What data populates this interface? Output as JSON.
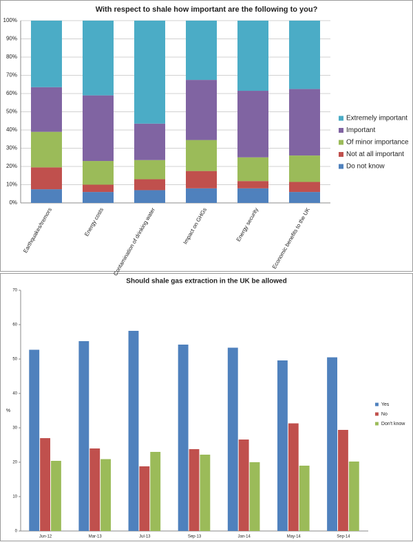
{
  "chart_data": [
    {
      "type": "bar",
      "stacked": true,
      "title": "With respect to shale how important are the following to you?",
      "categories": [
        "Earthquakes/tremors",
        "Energy costs",
        "Contamination of drinking water",
        "Impact on GHGs",
        "Energy security",
        "Economic benefits to the UK"
      ],
      "series": [
        {
          "name": "Do not know",
          "color": "#4f81bd",
          "values": [
            7.5,
            6,
            7,
            8,
            8,
            6
          ]
        },
        {
          "name": "Not at  all important",
          "color": "#c0504d",
          "values": [
            12,
            4,
            6,
            9.5,
            4,
            5.5
          ]
        },
        {
          "name": "Of minor importance",
          "color": "#9bbb59",
          "values": [
            19.5,
            13,
            10.5,
            17,
            13,
            14.5
          ]
        },
        {
          "name": "Important",
          "color": "#8064a2",
          "values": [
            24.5,
            36,
            20,
            33,
            36.5,
            36.5
          ]
        },
        {
          "name": "Extremely important",
          "color": "#4bacc6",
          "values": [
            36.5,
            41,
            56.5,
            32.5,
            38.5,
            37.5
          ]
        }
      ],
      "ylim": [
        0,
        100
      ],
      "yticks": [
        {
          "value": 0,
          "label": "0%"
        },
        {
          "value": 10,
          "label": "10%"
        },
        {
          "value": 20,
          "label": "20%"
        },
        {
          "value": 30,
          "label": "30%"
        },
        {
          "value": 40,
          "label": "40%"
        },
        {
          "value": 50,
          "label": "50%"
        },
        {
          "value": 60,
          "label": "60%"
        },
        {
          "value": 70,
          "label": "70%"
        },
        {
          "value": 80,
          "label": "80%"
        },
        {
          "value": 90,
          "label": "90%"
        },
        {
          "value": 100,
          "label": "100%"
        }
      ],
      "grid": true,
      "legend": "right"
    },
    {
      "type": "bar",
      "stacked": false,
      "title": "Should shale gas extraction in the UK be allowed",
      "y_label": "%",
      "categories": [
        "Jun-12",
        "Mar-13",
        "Jul-13",
        "Sep-13",
        "Jan-14",
        "May-14",
        "Sep-14"
      ],
      "series": [
        {
          "name": "Yes",
          "color": "#4f81bd",
          "values": [
            52.7,
            55.2,
            58.2,
            54.2,
            53.3,
            49.6,
            50.5
          ]
        },
        {
          "name": "No",
          "color": "#c0504d",
          "values": [
            27,
            24,
            18.8,
            23.8,
            26.6,
            31.3,
            29.4
          ]
        },
        {
          "name": "Don't know",
          "color": "#9bbb59",
          "values": [
            20.4,
            20.9,
            23,
            22.2,
            20,
            19,
            20.2
          ]
        }
      ],
      "ylim": [
        0,
        70
      ],
      "yticks": [
        0,
        10,
        20,
        30,
        40,
        50,
        60,
        70
      ],
      "grid": false,
      "legend": "right"
    }
  ]
}
